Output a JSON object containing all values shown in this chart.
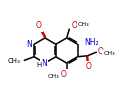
{
  "bg_color": "#ffffff",
  "bond_color": "#000000",
  "N_color": "#0000cc",
  "O_color": "#cc0000",
  "figsize": [
    1.28,
    1.03
  ],
  "dpi": 100,
  "xlim": [
    0,
    10
  ],
  "ylim": [
    0,
    10
  ],
  "bond_lw": 1.1,
  "font_size": 5.5
}
